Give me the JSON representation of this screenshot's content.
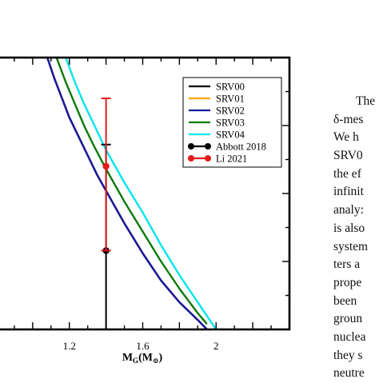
{
  "chart_data": {
    "type": "line",
    "title": "",
    "xlabel": "M_G(M_⊙)",
    "ylabel": "",
    "xlim": [
      0.8,
      2.4
    ],
    "ylim": [
      0,
      1
    ],
    "grid": false,
    "legend_position": "top-right",
    "x_ticks": [
      "1.2",
      "1.6",
      "2"
    ],
    "x_tick_values": [
      1.2,
      1.6,
      2.0
    ],
    "series": [
      {
        "name": "SRV00",
        "color": "#000000",
        "x": [
          1.08,
          1.12,
          1.16,
          1.2,
          1.25,
          1.3,
          1.35,
          1.4,
          1.5,
          1.6,
          1.7,
          1.8,
          1.9,
          1.95
        ],
        "y": [
          1.0,
          0.92,
          0.85,
          0.78,
          0.71,
          0.64,
          0.57,
          0.51,
          0.39,
          0.28,
          0.18,
          0.1,
          0.035,
          0.0
        ]
      },
      {
        "name": "SRV01",
        "color": "#FFA500",
        "x": [
          1.08,
          1.12,
          1.16,
          1.2,
          1.25,
          1.3,
          1.35,
          1.4,
          1.5,
          1.6,
          1.7,
          1.8,
          1.9,
          1.95
        ],
        "y": [
          1.0,
          0.92,
          0.85,
          0.78,
          0.71,
          0.64,
          0.57,
          0.51,
          0.39,
          0.28,
          0.18,
          0.1,
          0.035,
          0.0
        ]
      },
      {
        "name": "SRV02",
        "color": "#1a1aa0",
        "x": [
          1.08,
          1.12,
          1.16,
          1.2,
          1.25,
          1.3,
          1.35,
          1.4,
          1.5,
          1.6,
          1.7,
          1.8,
          1.9,
          1.95
        ],
        "y": [
          1.0,
          0.92,
          0.85,
          0.78,
          0.71,
          0.64,
          0.57,
          0.51,
          0.39,
          0.28,
          0.18,
          0.1,
          0.035,
          0.0
        ]
      },
      {
        "name": "SRV03",
        "color": "#0a7a0a",
        "x": [
          1.13,
          1.18,
          1.23,
          1.28,
          1.33,
          1.4,
          1.5,
          1.6,
          1.7,
          1.8,
          1.9,
          1.95
        ],
        "y": [
          1.0,
          0.91,
          0.83,
          0.75,
          0.68,
          0.59,
          0.47,
          0.36,
          0.25,
          0.15,
          0.06,
          0.02
        ]
      },
      {
        "name": "SRV04",
        "color": "#00e5ee",
        "x": [
          1.18,
          1.23,
          1.28,
          1.33,
          1.4,
          1.5,
          1.6,
          1.7,
          1.8,
          1.9,
          2.0
        ],
        "y": [
          1.0,
          0.91,
          0.83,
          0.76,
          0.66,
          0.54,
          0.43,
          0.31,
          0.2,
          0.1,
          0.0
        ]
      }
    ],
    "points": [
      {
        "name": "Abbott 2018",
        "color": "#000000",
        "x": 1.4,
        "y": 0.29,
        "err_low": 0.29,
        "err_high": 0.39
      },
      {
        "name": "Li 2021",
        "color": "#e31a1c",
        "x": 1.4,
        "y": 0.6,
        "err_low": 0.31,
        "err_high": 0.25
      }
    ]
  },
  "paragraph": {
    "lines": [
      "The",
      "δ-mes",
      "We h",
      "SRV0",
      "the ef",
      "infinit",
      "analy:",
      "is also",
      "system",
      "ters a",
      "prope",
      "been",
      "groun",
      "nuclea",
      "they s",
      "neutre"
    ]
  }
}
